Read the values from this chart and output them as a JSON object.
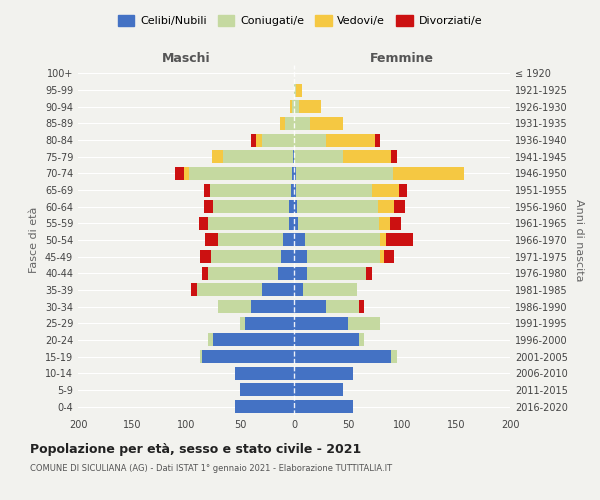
{
  "age_groups_top_to_bottom": [
    "100+",
    "95-99",
    "90-94",
    "85-89",
    "80-84",
    "75-79",
    "70-74",
    "65-69",
    "60-64",
    "55-59",
    "50-54",
    "45-49",
    "40-44",
    "35-39",
    "30-34",
    "25-29",
    "20-24",
    "15-19",
    "10-14",
    "5-9",
    "0-4"
  ],
  "birth_years_top_to_bottom": [
    "≤ 1920",
    "1921-1925",
    "1926-1930",
    "1931-1935",
    "1936-1940",
    "1941-1945",
    "1946-1950",
    "1951-1955",
    "1956-1960",
    "1961-1965",
    "1966-1970",
    "1971-1975",
    "1976-1980",
    "1981-1985",
    "1986-1990",
    "1991-1995",
    "1996-2000",
    "2001-2005",
    "2006-2010",
    "2011-2015",
    "2016-2020"
  ],
  "colors": {
    "celibi": "#4472C4",
    "coniugati": "#C5D9A0",
    "vedovi": "#F5C842",
    "divorziati": "#CC1111"
  },
  "males_top_to_bottom": {
    "celibi": [
      0,
      0,
      0,
      0,
      0,
      1,
      2,
      3,
      5,
      5,
      10,
      12,
      15,
      30,
      40,
      45,
      75,
      85,
      55,
      50,
      55
    ],
    "coniugati": [
      0,
      0,
      2,
      8,
      30,
      65,
      95,
      75,
      70,
      75,
      60,
      65,
      65,
      60,
      30,
      5,
      5,
      2,
      0,
      0,
      0
    ],
    "vedovi": [
      0,
      0,
      2,
      5,
      5,
      10,
      5,
      0,
      0,
      0,
      0,
      0,
      0,
      0,
      0,
      0,
      0,
      0,
      0,
      0,
      0
    ],
    "divorziati": [
      0,
      0,
      0,
      0,
      5,
      0,
      8,
      5,
      8,
      8,
      12,
      10,
      5,
      5,
      0,
      0,
      0,
      0,
      0,
      0,
      0
    ]
  },
  "females_top_to_bottom": {
    "nubili": [
      0,
      0,
      0,
      0,
      0,
      0,
      2,
      2,
      3,
      4,
      10,
      12,
      12,
      8,
      30,
      50,
      60,
      90,
      55,
      45,
      55
    ],
    "coniugate": [
      0,
      2,
      5,
      15,
      30,
      45,
      90,
      70,
      75,
      75,
      70,
      68,
      55,
      50,
      30,
      30,
      5,
      5,
      0,
      0,
      0
    ],
    "vedove": [
      0,
      5,
      20,
      30,
      45,
      45,
      65,
      25,
      15,
      10,
      5,
      3,
      0,
      0,
      0,
      0,
      0,
      0,
      0,
      0,
      0
    ],
    "divorziate": [
      0,
      0,
      0,
      0,
      5,
      5,
      0,
      8,
      10,
      10,
      25,
      10,
      5,
      0,
      5,
      0,
      0,
      0,
      0,
      0,
      0
    ]
  },
  "xlim": 200,
  "title": "Popolazione per età, sesso e stato civile - 2021",
  "subtitle": "COMUNE DI SICULIANA (AG) - Dati ISTAT 1° gennaio 2021 - Elaborazione TUTTITALIA.IT",
  "ylabel_left": "Fasce di età",
  "ylabel_right": "Anni di nascita",
  "xlabel_left": "Maschi",
  "xlabel_right": "Femmine",
  "bg_color": "#f2f2ee",
  "legend_labels": [
    "Celibi/Nubili",
    "Coniugati/e",
    "Vedovi/e",
    "Divorziati/e"
  ]
}
